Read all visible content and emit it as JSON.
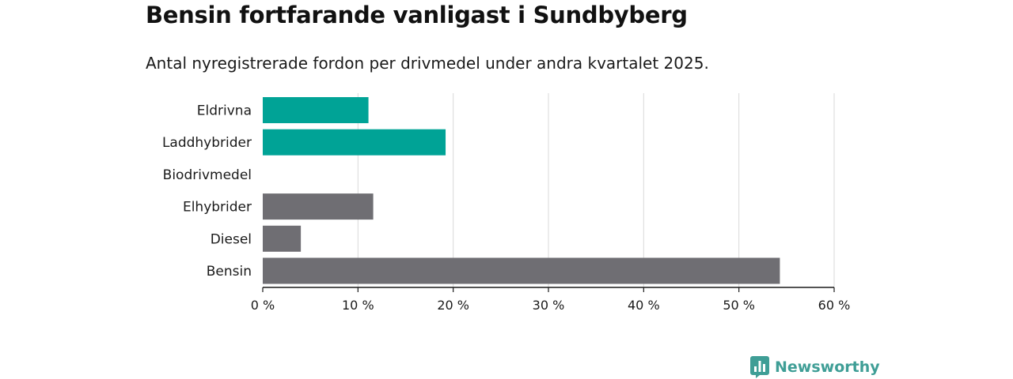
{
  "title": "Bensin fortfarande vanligast i Sundbyberg",
  "subtitle": "Antal nyregistrerade fordon per drivmedel under andra kvartalet 2025.",
  "brand": {
    "name": "Newsworthy",
    "icon": "newsworthy-logo-icon",
    "color": "#3f9e96"
  },
  "colors": {
    "electric": "#00a396",
    "other": "#6f6e73",
    "grid": "#d9d9d9",
    "axis": "#1a1a1a"
  },
  "chart_data": {
    "type": "bar",
    "orientation": "horizontal",
    "categories": [
      "Eldrivna",
      "Laddhybrider",
      "Biodrivmedel",
      "Elhybrider",
      "Diesel",
      "Bensin"
    ],
    "values": [
      11.1,
      19.2,
      0,
      11.6,
      4.0,
      54.3
    ],
    "bar_colors": [
      "#00a396",
      "#00a396",
      "#00a396",
      "#6f6e73",
      "#6f6e73",
      "#6f6e73"
    ],
    "unit": "%",
    "xlim": [
      0,
      60
    ],
    "x_ticks": [
      0,
      10,
      20,
      30,
      40,
      50,
      60
    ],
    "x_tick_labels": [
      "0 %",
      "10 %",
      "20 %",
      "30 %",
      "40 %",
      "50 %",
      "60 %"
    ],
    "xlabel": "",
    "ylabel": "",
    "grid": "vertical",
    "legend": "none"
  }
}
